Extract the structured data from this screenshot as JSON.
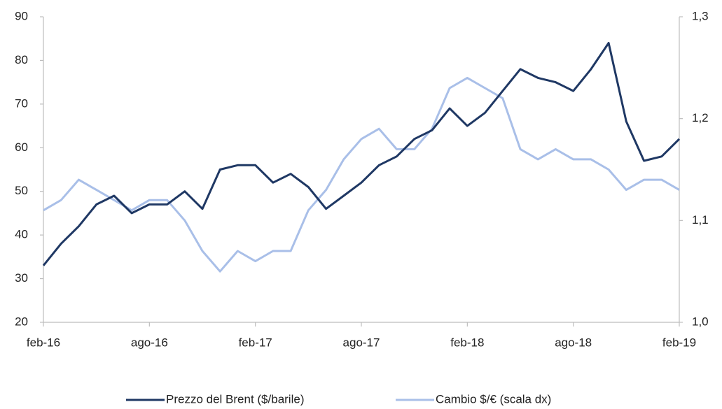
{
  "chart_data": {
    "type": "line",
    "categories": [
      "feb-16",
      null,
      null,
      null,
      null,
      null,
      "ago-16",
      null,
      null,
      null,
      null,
      null,
      "feb-17",
      null,
      null,
      null,
      null,
      null,
      "ago-17",
      null,
      null,
      null,
      null,
      null,
      "feb-18",
      null,
      null,
      null,
      null,
      null,
      "ago-18",
      null,
      null,
      null,
      null,
      null,
      "feb-19"
    ],
    "series": [
      {
        "name": "Prezzo del Brent ($/barile)",
        "color": "#1f3864",
        "values": [
          33,
          38,
          42,
          47,
          49,
          45,
          47,
          47,
          50,
          46,
          55,
          56,
          56,
          52,
          54,
          51,
          46,
          49,
          52,
          56,
          58,
          62,
          64,
          69,
          65,
          68,
          73,
          78,
          76,
          75,
          73,
          78,
          84,
          66,
          57,
          58,
          62
        ]
      },
      {
        "name": "Cambio $/€ (scala dx)",
        "color": "#a9bfe8",
        "axis": "y2",
        "values": [
          1.11,
          1.12,
          1.14,
          1.13,
          1.12,
          1.11,
          1.12,
          1.12,
          1.1,
          1.07,
          1.05,
          1.07,
          1.06,
          1.07,
          1.07,
          1.11,
          1.13,
          1.16,
          1.18,
          1.19,
          1.17,
          1.17,
          1.19,
          1.23,
          1.24,
          1.23,
          1.22,
          1.17,
          1.16,
          1.17,
          1.16,
          1.16,
          1.15,
          1.13,
          1.14,
          1.14,
          1.13
        ]
      }
    ],
    "ylim": [
      20,
      90
    ],
    "yticks": [
      20,
      30,
      40,
      50,
      60,
      70,
      80,
      90
    ],
    "y2lim": [
      1.0,
      1.3
    ],
    "y2ticks": [
      {
        "value": 1.0,
        "label": "1,0"
      },
      {
        "value": 1.1,
        "label": "1,1"
      },
      {
        "value": 1.2,
        "label": "1,2"
      },
      {
        "value": 1.3,
        "label": "1,3"
      }
    ],
    "grid": false,
    "legend": "bottom"
  }
}
